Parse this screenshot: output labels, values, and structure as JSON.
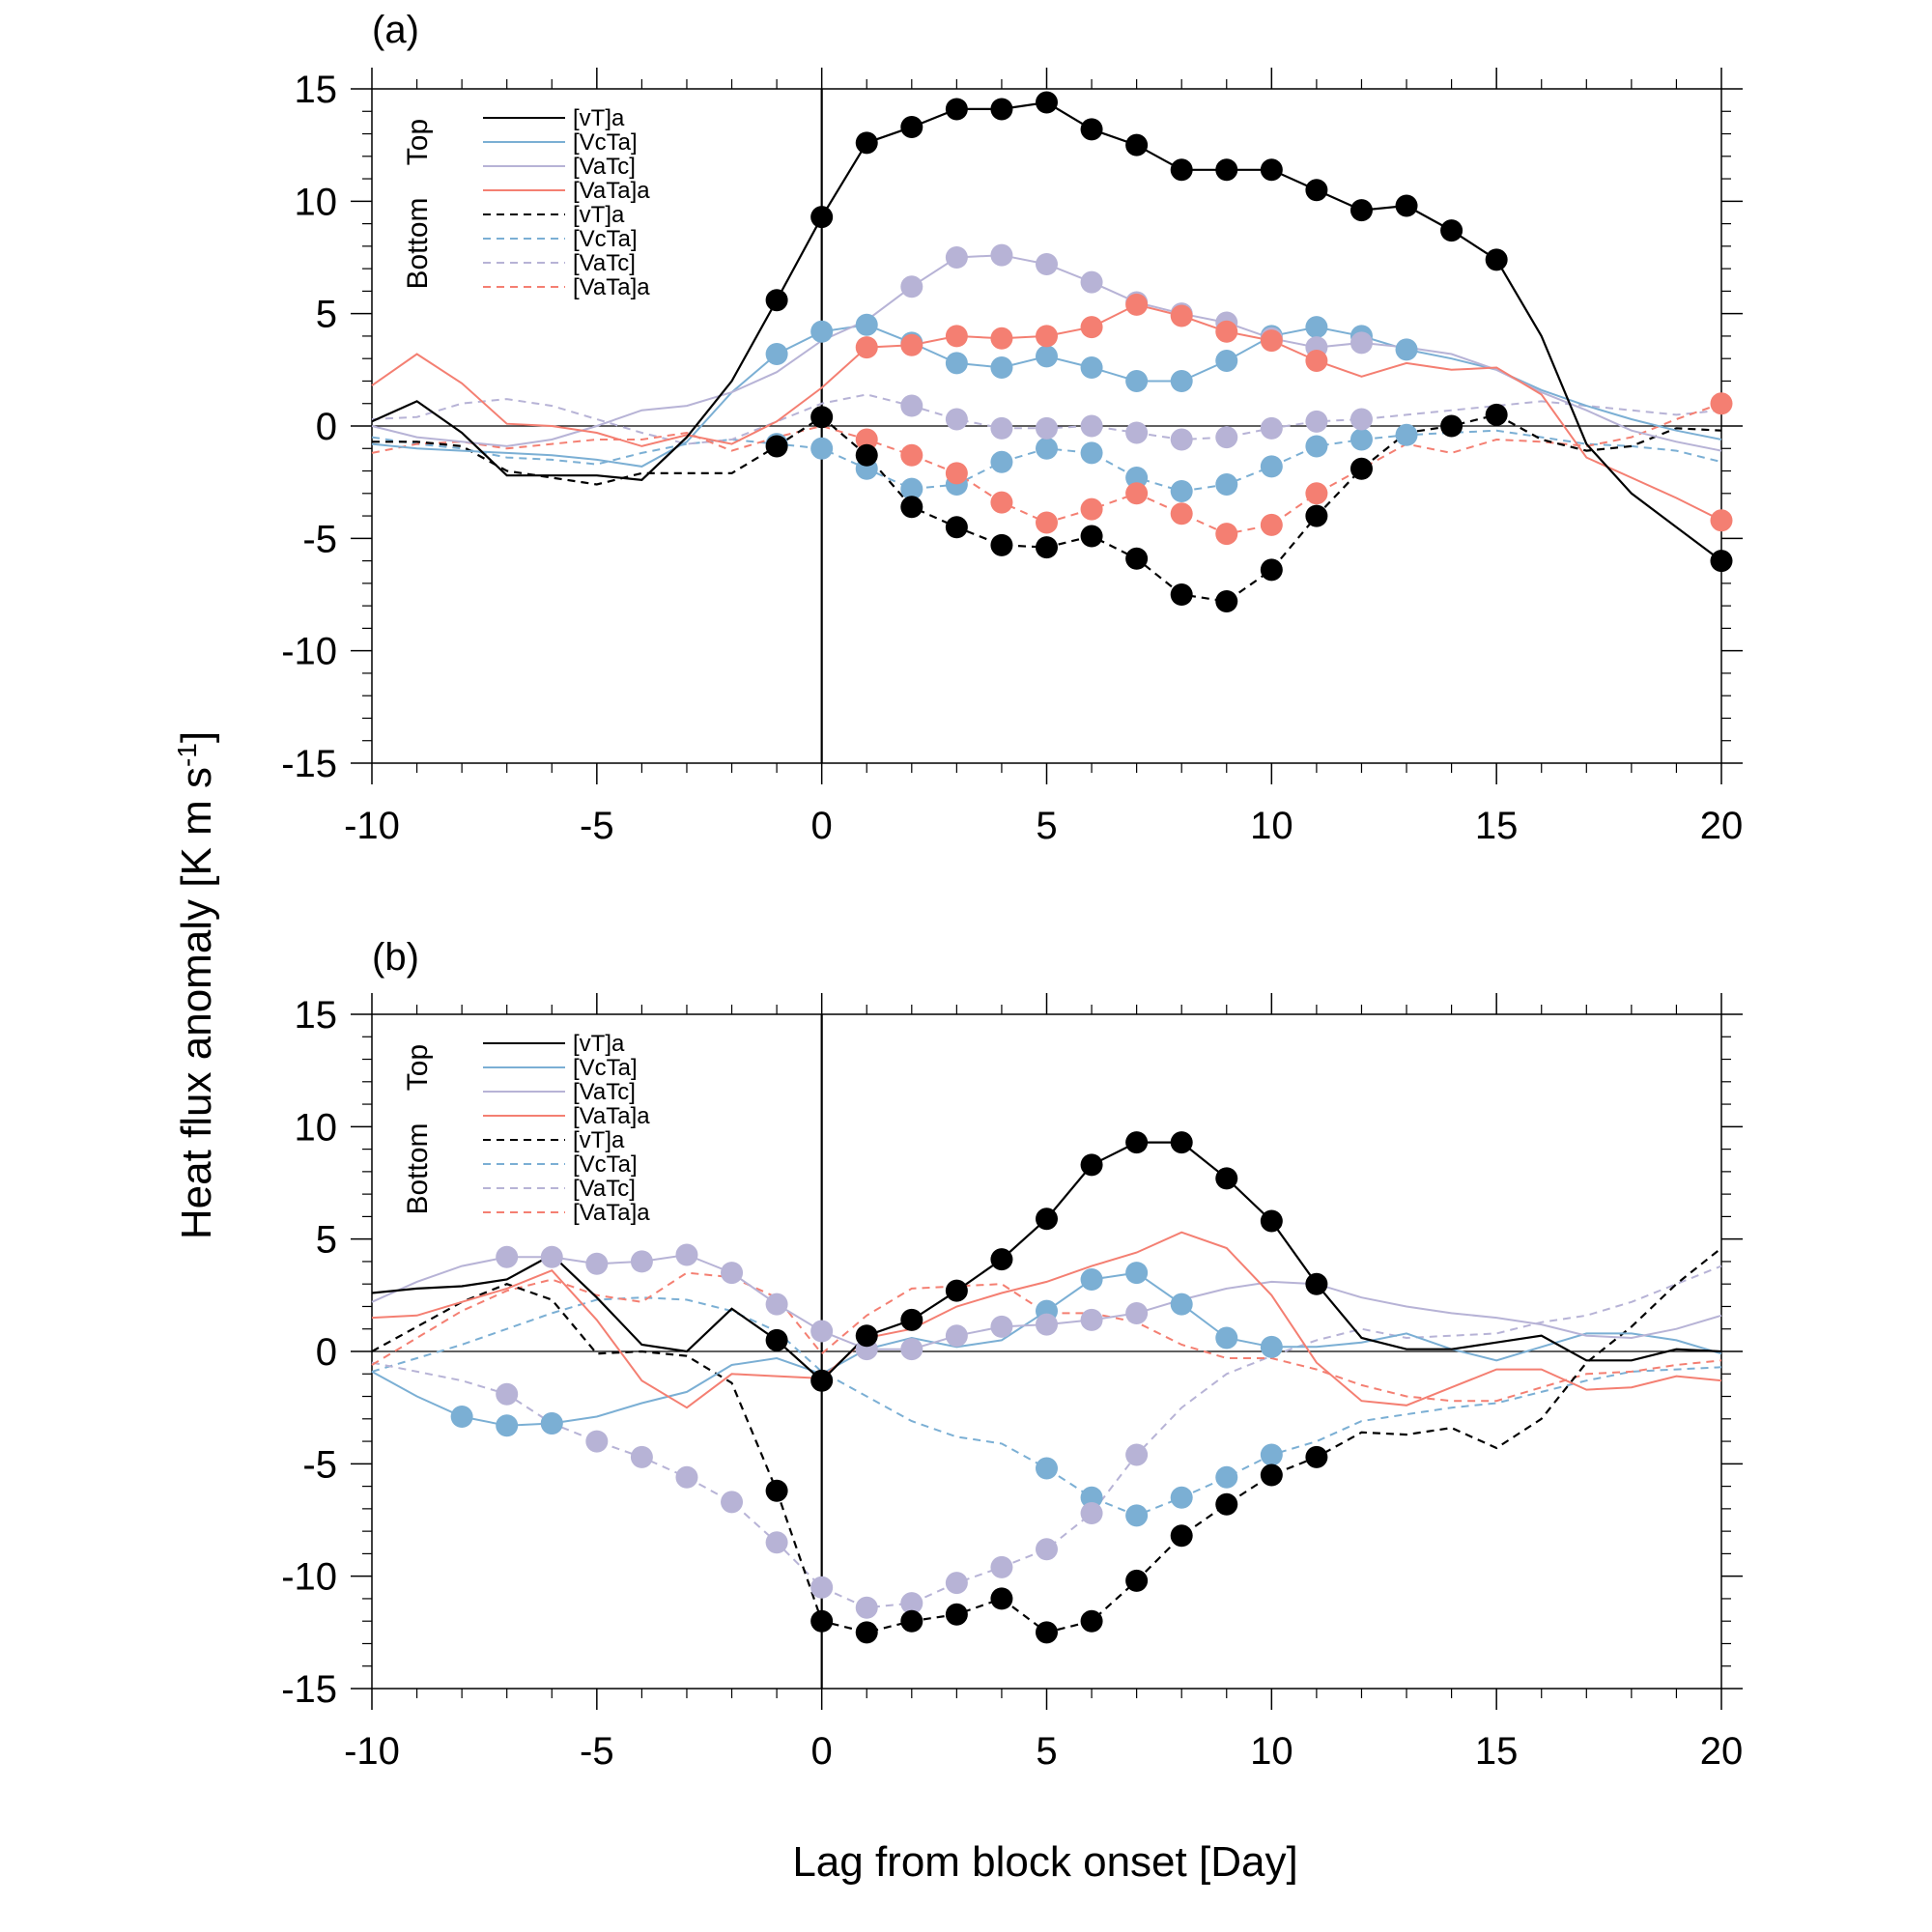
{
  "chart_data": [
    {
      "type": "line",
      "panel_label": "(a)",
      "xlabel": "",
      "ylabel": "",
      "xlim": [
        -10,
        20
      ],
      "ylim": [
        -15,
        15
      ],
      "x_ticks": [
        -10,
        -5,
        0,
        5,
        10,
        15,
        20
      ],
      "y_ticks": [
        -15,
        -10,
        -5,
        0,
        5,
        10,
        15
      ],
      "reference_lines": {
        "horizontal_y": 0,
        "vertical_x": 0
      },
      "legend_group_labels": {
        "top": "Top",
        "bottom": "Bottom"
      },
      "legend_entries": [
        "[vT]a",
        "[VcTa]",
        "[VaTc]",
        "[VaTa]a",
        "[vT]a",
        "[VcTa]",
        "[VaTc]",
        "[VaTa]a"
      ],
      "x": [
        -10,
        -9,
        -8,
        -7,
        -6,
        -5,
        -4,
        -3,
        -2,
        -1,
        0,
        1,
        2,
        3,
        4,
        5,
        6,
        7,
        8,
        9,
        10,
        11,
        12,
        13,
        14,
        15,
        16,
        17,
        18,
        19,
        20
      ],
      "series": [
        {
          "name": "[vT]a",
          "level": "Top",
          "color": "#000000",
          "dash": "solid",
          "values": [
            0.2,
            1.1,
            -0.3,
            -2.2,
            -2.2,
            -2.2,
            -2.4,
            -0.5,
            2.0,
            5.6,
            9.3,
            12.6,
            13.3,
            14.1,
            14.1,
            14.4,
            13.2,
            12.5,
            11.4,
            11.4,
            11.4,
            10.5,
            9.6,
            9.8,
            8.7,
            7.4,
            4.0,
            -0.8,
            -3.0,
            -4.5,
            -6.0
          ],
          "markers": [
            -1,
            0,
            1,
            2,
            3,
            4,
            5,
            6,
            7,
            8,
            9,
            10,
            11,
            12,
            13,
            14,
            15,
            20
          ]
        },
        {
          "name": "[VcTa]",
          "level": "Top",
          "color": "#7bafd4",
          "dash": "solid",
          "values": [
            -0.8,
            -1.0,
            -1.1,
            -1.2,
            -1.3,
            -1.5,
            -1.8,
            -0.7,
            1.5,
            3.2,
            4.2,
            4.5,
            3.7,
            2.8,
            2.6,
            3.1,
            2.6,
            2.0,
            2.0,
            2.9,
            4.0,
            4.4,
            4.0,
            3.4,
            3.0,
            2.5,
            1.6,
            0.9,
            0.3,
            -0.2,
            -0.6
          ],
          "markers": [
            -1,
            0,
            1,
            2,
            3,
            4,
            5,
            6,
            7,
            8,
            9,
            10,
            11,
            12,
            13
          ]
        },
        {
          "name": "[VaTc]",
          "level": "Top",
          "color": "#b7b3d6",
          "dash": "solid",
          "values": [
            0.0,
            -0.5,
            -0.7,
            -0.9,
            -0.6,
            0.0,
            0.7,
            0.9,
            1.5,
            2.4,
            3.8,
            4.7,
            6.2,
            7.5,
            7.6,
            7.2,
            6.4,
            5.5,
            5.0,
            4.6,
            3.9,
            3.5,
            3.7,
            3.5,
            3.2,
            2.5,
            1.5,
            0.7,
            -0.2,
            -0.7,
            -1.1
          ],
          "markers": [
            2,
            3,
            4,
            5,
            6,
            7,
            8,
            9,
            10,
            11,
            12
          ]
        },
        {
          "name": "[VaTa]a",
          "level": "Top",
          "color": "#f47f72",
          "dash": "solid",
          "values": [
            1.8,
            3.2,
            1.9,
            0.1,
            0.0,
            -0.3,
            -0.9,
            -0.4,
            -0.8,
            0.2,
            1.7,
            3.5,
            3.6,
            4.0,
            3.9,
            4.0,
            4.4,
            5.4,
            4.9,
            4.2,
            3.8,
            2.9,
            2.2,
            2.8,
            2.5,
            2.6,
            1.4,
            -1.4,
            -2.3,
            -3.2,
            -4.2
          ],
          "markers": [
            1,
            2,
            3,
            4,
            5,
            6,
            7,
            8,
            9,
            10,
            11,
            20
          ]
        },
        {
          "name": "[vT]a",
          "level": "Bottom",
          "color": "#000000",
          "dash": "dashed",
          "values": [
            -0.7,
            -0.7,
            -0.9,
            -2.0,
            -2.3,
            -2.6,
            -2.1,
            -2.1,
            -2.1,
            -0.9,
            0.4,
            -1.3,
            -3.6,
            -4.5,
            -5.3,
            -5.4,
            -4.9,
            -5.9,
            -7.5,
            -7.8,
            -6.4,
            -4.0,
            -1.9,
            -0.3,
            0.0,
            0.5,
            -0.6,
            -1.1,
            -0.9,
            -0.1,
            -0.2
          ],
          "markers": [
            -1,
            0,
            1,
            2,
            3,
            4,
            5,
            6,
            7,
            8,
            9,
            10,
            11,
            12,
            14,
            15
          ]
        },
        {
          "name": "[VcTa]",
          "level": "Bottom",
          "color": "#7bafd4",
          "dash": "dashed",
          "values": [
            -0.5,
            -0.8,
            -1.0,
            -1.4,
            -1.5,
            -1.7,
            -1.2,
            -0.8,
            -0.6,
            -0.8,
            -1.0,
            -1.9,
            -2.8,
            -2.6,
            -1.6,
            -1.0,
            -1.2,
            -2.3,
            -2.9,
            -2.6,
            -1.8,
            -0.9,
            -0.6,
            -0.4,
            -0.3,
            -0.2,
            -0.5,
            -0.8,
            -0.9,
            -1.1,
            -1.6
          ],
          "markers": [
            -1,
            0,
            1,
            2,
            3,
            4,
            5,
            6,
            7,
            8,
            9,
            10,
            11,
            12,
            13
          ]
        },
        {
          "name": "[VaTc]",
          "level": "Bottom",
          "color": "#b7b3d6",
          "dash": "dashed",
          "values": [
            0.3,
            0.4,
            1.0,
            1.2,
            0.9,
            0.3,
            -0.3,
            -0.8,
            -0.6,
            0.2,
            1.0,
            1.4,
            0.9,
            0.3,
            -0.1,
            -0.1,
            0.0,
            -0.3,
            -0.6,
            -0.5,
            -0.1,
            0.2,
            0.3,
            0.5,
            0.7,
            0.9,
            1.1,
            0.9,
            0.7,
            0.5,
            0.7
          ],
          "markers": [
            2,
            3,
            4,
            5,
            6,
            7,
            8,
            9,
            10,
            11,
            12
          ]
        },
        {
          "name": "[VaTa]a",
          "level": "Bottom",
          "color": "#f47f72",
          "dash": "dashed",
          "values": [
            -1.2,
            -0.8,
            -0.7,
            -1.0,
            -0.8,
            -0.6,
            -0.6,
            -0.3,
            -1.1,
            -0.5,
            0.0,
            -0.6,
            -1.3,
            -2.1,
            -3.4,
            -4.3,
            -3.7,
            -3.0,
            -3.9,
            -4.8,
            -4.4,
            -3.0,
            -1.9,
            -0.8,
            -1.2,
            -0.6,
            -0.7,
            -0.9,
            -0.5,
            0.3,
            1.0
          ],
          "markers": [
            1,
            2,
            3,
            4,
            5,
            6,
            7,
            8,
            9,
            10,
            11,
            20
          ]
        }
      ]
    },
    {
      "type": "line",
      "panel_label": "(b)",
      "xlabel": "Lag from block onset [Day]",
      "ylabel": "Heat flux anomaly [K m s-1]",
      "xlim": [
        -10,
        20
      ],
      "ylim": [
        -15,
        15
      ],
      "x_ticks": [
        -10,
        -5,
        0,
        5,
        10,
        15,
        20
      ],
      "y_ticks": [
        -15,
        -10,
        -5,
        0,
        5,
        10,
        15
      ],
      "reference_lines": {
        "horizontal_y": 0,
        "vertical_x": 0
      },
      "legend_group_labels": {
        "top": "Top",
        "bottom": "Bottom"
      },
      "legend_entries": [
        "[vT]a",
        "[VcTa]",
        "[VaTc]",
        "[VaTa]a",
        "[vT]a",
        "[VcTa]",
        "[VaTc]",
        "[VaTa]a"
      ],
      "x": [
        -10,
        -9,
        -8,
        -7,
        -6,
        -5,
        -4,
        -3,
        -2,
        -1,
        0,
        1,
        2,
        3,
        4,
        5,
        6,
        7,
        8,
        9,
        10,
        11,
        12,
        13,
        14,
        15,
        16,
        17,
        18,
        19,
        20
      ],
      "series": [
        {
          "name": "[vT]a",
          "level": "Top",
          "color": "#000000",
          "dash": "solid",
          "values": [
            2.6,
            2.8,
            2.9,
            3.2,
            4.3,
            2.4,
            0.3,
            0.0,
            1.9,
            0.5,
            -1.3,
            0.7,
            1.4,
            2.7,
            4.1,
            5.9,
            8.3,
            9.3,
            9.3,
            7.7,
            5.8,
            3.0,
            0.6,
            0.1,
            0.1,
            0.4,
            0.7,
            -0.4,
            -0.4,
            0.1,
            0.0
          ],
          "markers": [
            -1,
            0,
            1,
            2,
            3,
            4,
            5,
            6,
            7,
            8,
            9,
            10,
            11
          ]
        },
        {
          "name": "[VcTa]",
          "level": "Top",
          "color": "#7bafd4",
          "dash": "solid",
          "values": [
            -0.9,
            -2.0,
            -2.9,
            -3.3,
            -3.2,
            -2.9,
            -2.3,
            -1.8,
            -0.6,
            -0.3,
            -1.0,
            0.1,
            0.6,
            0.2,
            0.5,
            1.8,
            3.2,
            3.5,
            2.1,
            0.6,
            0.2,
            0.2,
            0.4,
            0.8,
            0.1,
            -0.4,
            0.2,
            0.8,
            0.8,
            0.5,
            -0.1
          ],
          "markers": [
            -8,
            -7,
            -6,
            5,
            6,
            7,
            8,
            9,
            10
          ]
        },
        {
          "name": "[VaTc]",
          "level": "Top",
          "color": "#b7b3d6",
          "dash": "solid",
          "values": [
            2.2,
            3.1,
            3.8,
            4.2,
            4.2,
            3.9,
            4.0,
            4.3,
            3.5,
            2.1,
            0.9,
            0.1,
            0.1,
            0.7,
            1.1,
            1.2,
            1.4,
            1.7,
            2.3,
            2.8,
            3.1,
            3.0,
            2.4,
            2.0,
            1.7,
            1.5,
            1.2,
            0.7,
            0.6,
            1.0,
            1.6
          ],
          "markers": [
            -7,
            -6,
            -5,
            -4,
            -3,
            -2,
            -1,
            0,
            1,
            2,
            3,
            4,
            5,
            6,
            7
          ]
        },
        {
          "name": "[VaTa]a",
          "level": "Top",
          "color": "#f47f72",
          "dash": "solid",
          "values": [
            1.5,
            1.6,
            2.2,
            2.8,
            3.6,
            1.4,
            -1.3,
            -2.5,
            -1.0,
            -1.1,
            -1.2,
            0.6,
            1.0,
            2.0,
            2.6,
            3.1,
            3.8,
            4.4,
            5.3,
            4.6,
            2.5,
            -0.5,
            -2.2,
            -2.4,
            -1.6,
            -0.8,
            -0.8,
            -1.7,
            -1.6,
            -1.1,
            -1.3
          ],
          "markers": []
        },
        {
          "name": "[vT]a",
          "level": "Bottom",
          "color": "#000000",
          "dash": "dashed",
          "values": [
            0.0,
            1.1,
            2.2,
            3.0,
            2.3,
            -0.1,
            0.0,
            -0.2,
            -1.4,
            -6.2,
            -12.0,
            -12.5,
            -12.0,
            -11.7,
            -11.0,
            -12.5,
            -12.0,
            -10.2,
            -8.2,
            -6.8,
            -5.5,
            -4.7,
            -3.6,
            -3.7,
            -3.4,
            -4.3,
            -3.0,
            -0.5,
            1.1,
            3.0,
            4.6
          ],
          "markers": [
            -1,
            0,
            1,
            2,
            3,
            4,
            5,
            6,
            7,
            8,
            9,
            10,
            11
          ]
        },
        {
          "name": "[VcTa]",
          "level": "Bottom",
          "color": "#7bafd4",
          "dash": "dashed",
          "values": [
            -0.9,
            -0.3,
            0.3,
            1.0,
            1.7,
            2.3,
            2.4,
            2.3,
            1.8,
            0.9,
            -0.9,
            -2.0,
            -3.1,
            -3.8,
            -4.1,
            -5.2,
            -6.5,
            -7.3,
            -6.5,
            -5.6,
            -4.6,
            -4.0,
            -3.1,
            -2.8,
            -2.5,
            -2.3,
            -1.8,
            -1.3,
            -0.9,
            -0.8,
            -0.7
          ],
          "markers": [
            5,
            6,
            7,
            8,
            9,
            10
          ]
        },
        {
          "name": "[VaTc]",
          "level": "Bottom",
          "color": "#b7b3d6",
          "dash": "dashed",
          "values": [
            -0.5,
            -0.9,
            -1.3,
            -1.9,
            -3.2,
            -4.0,
            -4.7,
            -5.6,
            -6.7,
            -8.5,
            -10.5,
            -11.4,
            -11.2,
            -10.3,
            -9.6,
            -8.8,
            -7.2,
            -4.6,
            -2.5,
            -1.0,
            -0.2,
            0.5,
            1.0,
            0.6,
            0.7,
            0.8,
            1.3,
            1.6,
            2.2,
            3.0,
            3.8
          ],
          "markers": [
            -7,
            -6,
            -5,
            -4,
            -3,
            -2,
            -1,
            0,
            1,
            2,
            3,
            4,
            5,
            6,
            7
          ]
        },
        {
          "name": "[VaTa]a",
          "level": "Bottom",
          "color": "#f47f72",
          "dash": "dashed",
          "values": [
            -0.6,
            0.6,
            1.8,
            2.7,
            3.2,
            2.5,
            2.2,
            3.5,
            3.3,
            2.4,
            -0.1,
            1.6,
            2.8,
            2.9,
            3.0,
            1.7,
            1.7,
            1.3,
            0.3,
            -0.3,
            -0.3,
            -0.8,
            -1.5,
            -2.0,
            -2.2,
            -2.2,
            -1.6,
            -1.0,
            -0.9,
            -0.6,
            -0.4
          ],
          "markers": []
        }
      ]
    }
  ]
}
